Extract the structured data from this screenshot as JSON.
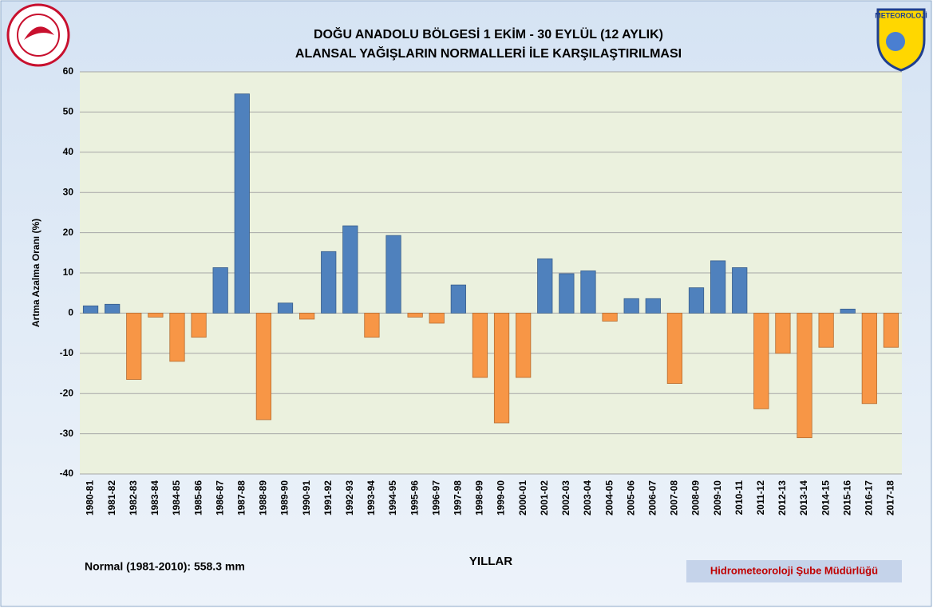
{
  "chart_data": {
    "type": "bar",
    "title": "DOĞU ANADOLU BÖLGESİ  1 EKİM - 30 EYLÜL (12 AYLIK)",
    "subtitle": "ALANSAL YAĞIŞLARIN NORMALLERİ İLE KARŞILAŞTIRILMASI",
    "y_label": "Artma Azalma Oranı (%)",
    "x_label": "YILLAR",
    "note": "Normal (1981-2010): 558.3 mm",
    "source": "Hidrometeoroloji Şube Müdürlüğü",
    "logo_text": "METEOROLOJİ",
    "categories": [
      "1980-81",
      "1981-82",
      "1982-83",
      "1983-84",
      "1984-85",
      "1985-86",
      "1986-87",
      "1987-88",
      "1988-89",
      "1989-90",
      "1990-91",
      "1991-92",
      "1992-93",
      "1993-94",
      "1994-95",
      "1995-96",
      "1996-97",
      "1997-98",
      "1998-99",
      "1999-00",
      "2000-01",
      "2001-02",
      "2002-03",
      "2003-04",
      "2004-05",
      "2005-06",
      "2006-07",
      "2007-08",
      "2008-09",
      "2009-10",
      "2010-11",
      "2011-12",
      "2012-13",
      "2013-14",
      "2014-15",
      "2015-16",
      "2016-17",
      "2017-18"
    ],
    "values": [
      1.8,
      2.2,
      -16.5,
      -1,
      -12,
      -6,
      11.3,
      54.5,
      -26.5,
      2.5,
      -1.5,
      15.3,
      21.7,
      -6,
      19.3,
      -1,
      -2.5,
      7,
      -16,
      -27.3,
      -16,
      13.5,
      9.8,
      10.5,
      -2,
      3.6,
      3.6,
      -17.5,
      6.3,
      13,
      11.3,
      -23.8,
      -10,
      -31,
      -8.5,
      1,
      -22.5,
      -8.5
    ],
    "color_positive": "#4f81bd",
    "color_negative": "#f79646",
    "ylim": [
      -40,
      60
    ],
    "yticks": [
      -40,
      -30,
      -20,
      -10,
      0,
      10,
      20,
      30,
      40,
      50,
      60
    ],
    "grid": true
  }
}
